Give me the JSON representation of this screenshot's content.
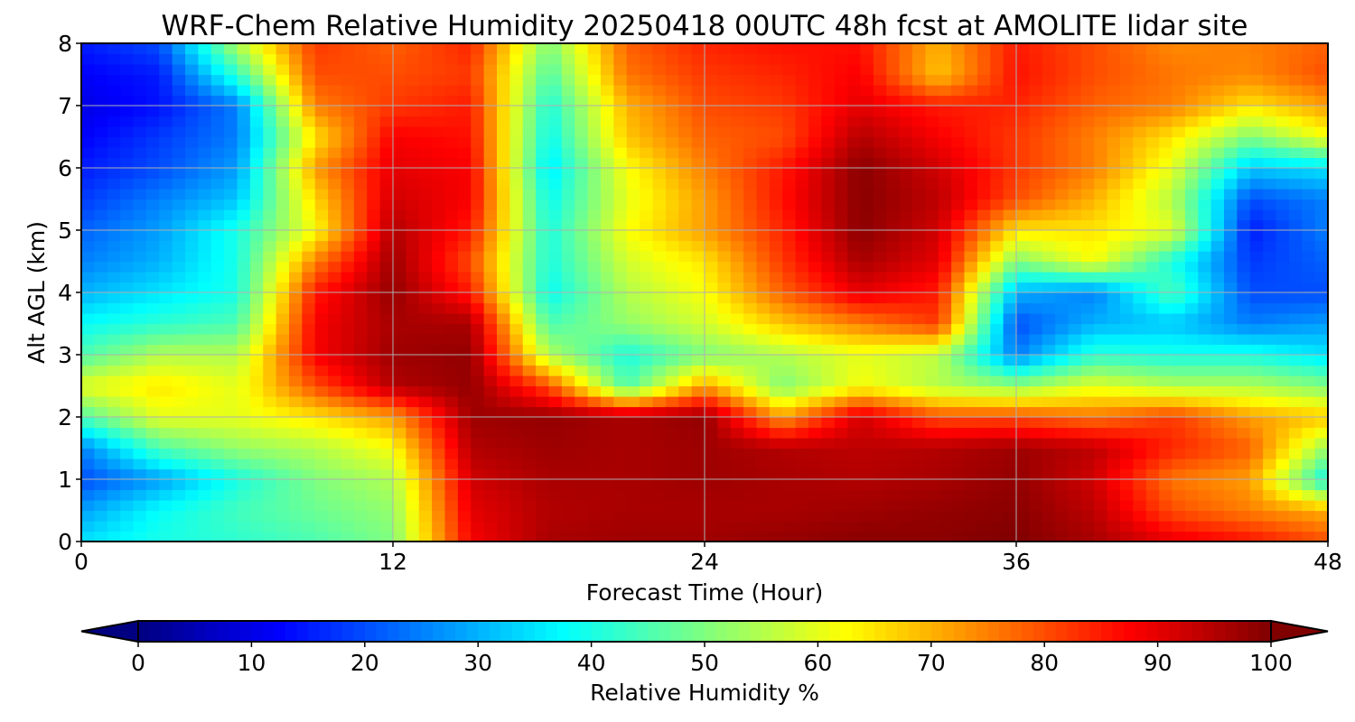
{
  "chart_data": {
    "type": "heatmap",
    "title": "WRF-Chem Relative Humidity 20250418 00UTC 48h fcst at AMOLITE lidar site",
    "xlabel": "Forecast Time (Hour)",
    "ylabel": "Alt AGL (km)",
    "xlim": [
      0,
      48
    ],
    "ylim": [
      0,
      8
    ],
    "x_ticks": [
      0,
      12,
      24,
      36,
      48
    ],
    "y_ticks": [
      0,
      1,
      2,
      3,
      4,
      5,
      6,
      7,
      8
    ],
    "grid": true,
    "colorbar": {
      "label": "Relative Humidity %",
      "vmin": 0,
      "vmax": 100,
      "ticks": [
        0,
        10,
        20,
        30,
        40,
        50,
        60,
        70,
        80,
        90,
        100
      ],
      "colormap": "jet",
      "extend": "both"
    },
    "x": [
      0,
      3,
      6,
      9,
      12,
      15,
      18,
      21,
      24,
      27,
      30,
      33,
      36,
      39,
      42,
      45,
      48
    ],
    "y": [
      0,
      0.5,
      1,
      1.5,
      2,
      2.5,
      3,
      3.5,
      4,
      4.5,
      5,
      5.5,
      6,
      6.5,
      7,
      7.5,
      8
    ],
    "z": [
      [
        35,
        40,
        42,
        45,
        50,
        88,
        96,
        97,
        97,
        98,
        99,
        99,
        100,
        96,
        90,
        86,
        80
      ],
      [
        28,
        38,
        44,
        48,
        52,
        90,
        95,
        96,
        96,
        96,
        97,
        98,
        99,
        94,
        80,
        75,
        70
      ],
      [
        20,
        28,
        40,
        50,
        55,
        92,
        96,
        96,
        97,
        96,
        95,
        96,
        98,
        92,
        76,
        72,
        38
      ],
      [
        25,
        45,
        52,
        55,
        62,
        95,
        97,
        96,
        97,
        95,
        94,
        95,
        97,
        94,
        84,
        78,
        52
      ],
      [
        45,
        60,
        60,
        65,
        72,
        97,
        98,
        96,
        98,
        72,
        92,
        80,
        80,
        76,
        82,
        72,
        68
      ],
      [
        60,
        65,
        60,
        80,
        95,
        98,
        80,
        45,
        72,
        50,
        62,
        55,
        52,
        60,
        55,
        55,
        50
      ],
      [
        45,
        55,
        55,
        88,
        97,
        98,
        55,
        40,
        50,
        55,
        60,
        56,
        25,
        42,
        40,
        40,
        35
      ],
      [
        38,
        42,
        45,
        88,
        96,
        96,
        45,
        52,
        58,
        68,
        75,
        82,
        20,
        30,
        32,
        25,
        28
      ],
      [
        30,
        35,
        40,
        85,
        98,
        85,
        38,
        55,
        62,
        78,
        90,
        85,
        30,
        25,
        45,
        20,
        20
      ],
      [
        25,
        30,
        40,
        75,
        97,
        80,
        40,
        58,
        65,
        82,
        96,
        90,
        50,
        62,
        40,
        18,
        22
      ],
      [
        22,
        28,
        40,
        62,
        95,
        85,
        40,
        62,
        72,
        84,
        99,
        92,
        65,
        65,
        60,
        15,
        25
      ],
      [
        18,
        25,
        32,
        66,
        92,
        88,
        38,
        60,
        72,
        86,
        99,
        94,
        80,
        70,
        55,
        20,
        25
      ],
      [
        15,
        20,
        28,
        72,
        90,
        88,
        35,
        62,
        75,
        85,
        99,
        92,
        82,
        75,
        60,
        32,
        35
      ],
      [
        12,
        18,
        25,
        65,
        88,
        86,
        38,
        68,
        78,
        80,
        95,
        88,
        82,
        75,
        65,
        50,
        62
      ],
      [
        10,
        14,
        25,
        75,
        82,
        85,
        40,
        70,
        80,
        82,
        90,
        85,
        84,
        78,
        75,
        65,
        72
      ],
      [
        12,
        15,
        42,
        80,
        80,
        82,
        45,
        76,
        82,
        84,
        88,
        68,
        86,
        80,
        76,
        74,
        80
      ],
      [
        15,
        20,
        55,
        82,
        78,
        84,
        50,
        78,
        84,
        86,
        86,
        70,
        85,
        80,
        74,
        75,
        78
      ]
    ]
  }
}
